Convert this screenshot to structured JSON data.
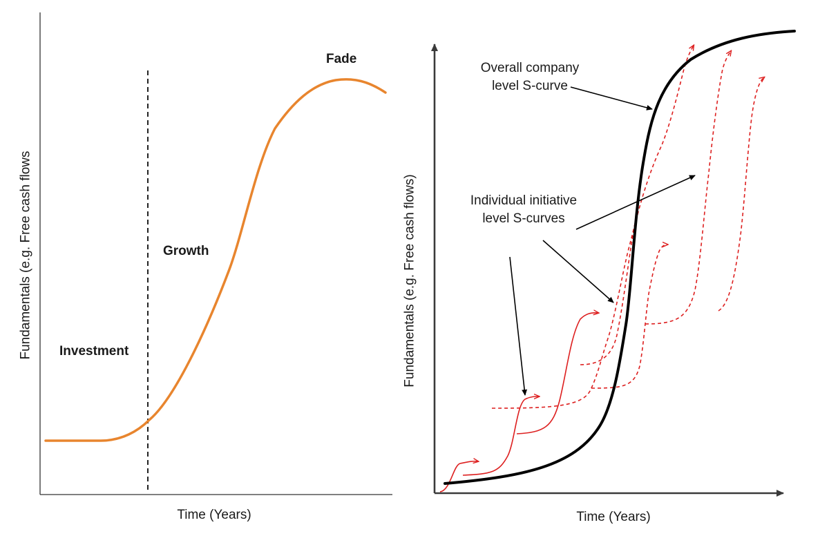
{
  "left_panel": {
    "y_axis_label": "Fundamentals (e.g. Free cash flows",
    "x_axis_label": "Time (Years)",
    "phases": [
      "Investment",
      "Growth",
      "Fade"
    ],
    "curve_color": "#e8852e",
    "divider_style": "dashed"
  },
  "right_panel": {
    "y_axis_label": "Fundamentals (e.g. Free cash flows)",
    "x_axis_label": "Time (Years)",
    "company_curve_label": [
      "Overall company",
      "level S-curve"
    ],
    "initiative_curves_label": [
      "Individual initiative",
      "level S-curves"
    ],
    "company_curve_color": "#000000",
    "initiative_curve_color": "#dd1f1f"
  }
}
